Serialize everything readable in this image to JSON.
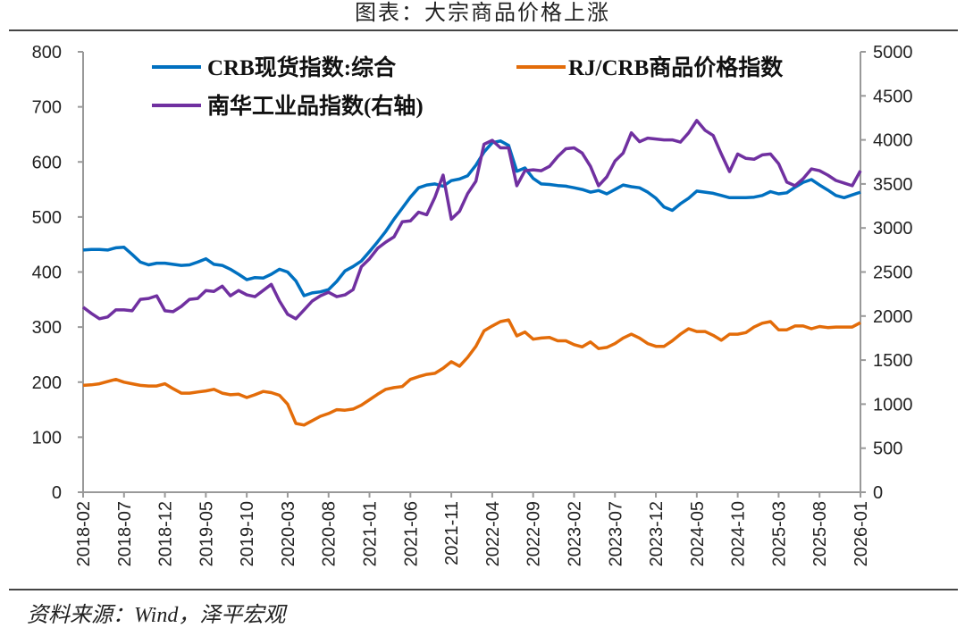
{
  "title": "图表：大宗商品价格上涨",
  "source": "资料来源：Wind，泽平宏观",
  "chart_data": {
    "type": "line",
    "x_start": "2018-02",
    "x_end": "2026-01",
    "frequency": "monthly",
    "x_tick_labels": [
      "2018-02",
      "2018-07",
      "2018-12",
      "2019-05",
      "2019-10",
      "2020-03",
      "2020-08",
      "2021-01",
      "2021-06",
      "2021-11",
      "2022-04",
      "2022-09",
      "2023-02",
      "2023-07",
      "2023-12",
      "2024-05",
      "2024-10",
      "2025-03",
      "2025-08",
      "2026-01"
    ],
    "y_left": {
      "range": [
        0,
        800
      ],
      "ticks": [
        0,
        100,
        200,
        300,
        400,
        500,
        600,
        700,
        800
      ]
    },
    "y_right": {
      "range": [
        0,
        5000
      ],
      "ticks": [
        0,
        500,
        1000,
        1500,
        2000,
        2500,
        3000,
        3500,
        4000,
        4500,
        5000
      ]
    },
    "grid": false,
    "legend_position": "top",
    "series": [
      {
        "name": "CRB现货指数:综合",
        "axis": "left",
        "color": "#0070C0",
        "values": [
          440,
          441,
          441,
          440,
          444,
          445,
          432,
          418,
          413,
          416,
          416,
          414,
          412,
          413,
          418,
          424,
          414,
          412,
          405,
          396,
          386,
          390,
          389,
          396,
          405,
          400,
          384,
          357,
          362,
          364,
          368,
          383,
          402,
          410,
          420,
          437,
          455,
          474,
          496,
          516,
          536,
          553,
          558,
          560,
          556,
          566,
          569,
          575,
          594,
          618,
          635,
          638,
          630,
          583,
          589,
          570,
          560,
          559,
          557,
          556,
          553,
          550,
          545,
          548,
          542,
          550,
          558,
          555,
          553,
          545,
          534,
          518,
          512,
          524,
          534,
          547,
          545,
          543,
          539,
          535,
          535,
          535,
          536,
          539,
          546,
          542,
          544,
          554,
          563,
          568,
          558,
          549,
          539,
          535,
          540,
          545
        ]
      },
      {
        "name": "RJ/CRB商品价格指数",
        "axis": "left",
        "color": "#E36C09",
        "values": [
          194,
          195,
          197,
          201,
          205,
          200,
          197,
          194,
          193,
          193,
          197,
          188,
          180,
          180,
          182,
          184,
          187,
          180,
          177,
          178,
          172,
          177,
          183,
          181,
          176,
          160,
          125,
          122,
          130,
          138,
          143,
          150,
          149,
          151,
          158,
          168,
          178,
          187,
          190,
          192,
          205,
          210,
          214,
          216,
          225,
          237,
          229,
          245,
          265,
          293,
          302,
          310,
          313,
          284,
          291,
          278,
          280,
          281,
          275,
          275,
          268,
          264,
          273,
          261,
          263,
          270,
          280,
          287,
          280,
          270,
          265,
          265,
          275,
          287,
          297,
          292,
          292,
          285,
          276,
          287,
          287,
          290,
          300,
          307,
          310,
          295,
          295,
          302,
          302,
          297,
          301,
          299,
          300,
          300,
          300,
          308
        ]
      },
      {
        "name": "南华工业品指数(右轴)",
        "axis": "right",
        "color": "#7030A0",
        "values": [
          2100,
          2030,
          1970,
          1990,
          2070,
          2070,
          2060,
          2190,
          2200,
          2230,
          2060,
          2050,
          2110,
          2190,
          2200,
          2290,
          2280,
          2340,
          2230,
          2290,
          2240,
          2220,
          2290,
          2360,
          2170,
          2020,
          1970,
          2070,
          2170,
          2230,
          2270,
          2220,
          2240,
          2300,
          2560,
          2650,
          2770,
          2840,
          2900,
          3070,
          3080,
          3180,
          3150,
          3350,
          3600,
          3100,
          3190,
          3390,
          3530,
          3950,
          3995,
          3910,
          3910,
          3480,
          3650,
          3660,
          3650,
          3700,
          3810,
          3900,
          3910,
          3850,
          3700,
          3480,
          3580,
          3760,
          3850,
          4080,
          3980,
          4020,
          4010,
          4000,
          4000,
          3975,
          4080,
          4220,
          4110,
          4050,
          3840,
          3640,
          3840,
          3790,
          3780,
          3830,
          3840,
          3730,
          3520,
          3480,
          3560,
          3670,
          3650,
          3600,
          3540,
          3510,
          3480,
          3650
        ]
      }
    ]
  }
}
